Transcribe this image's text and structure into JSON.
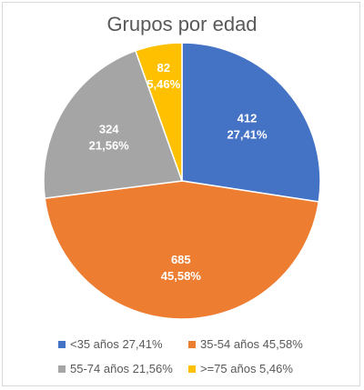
{
  "chart_data": {
    "type": "pie",
    "title": "Grupos por edad",
    "slices": [
      {
        "label": "<35 años",
        "value": 412,
        "percent_label": "27,41%",
        "color": "#4472C4"
      },
      {
        "label": "35-54 años",
        "value": 685,
        "percent_label": "45,58%",
        "color": "#ED7D31"
      },
      {
        "label": "55-74 años",
        "value": 324,
        "percent_label": "21,56%",
        "color": "#A5A5A5"
      },
      {
        "label": ">=75 años",
        "value": 82,
        "percent_label": "5,46%",
        "color": "#FFC000"
      }
    ],
    "legend": [
      "<35 años 27,41%",
      "35-54 años 45,58%",
      "55-74 años 21,56%",
      ">=75 años 5,46%"
    ],
    "legend_position": "bottom"
  }
}
